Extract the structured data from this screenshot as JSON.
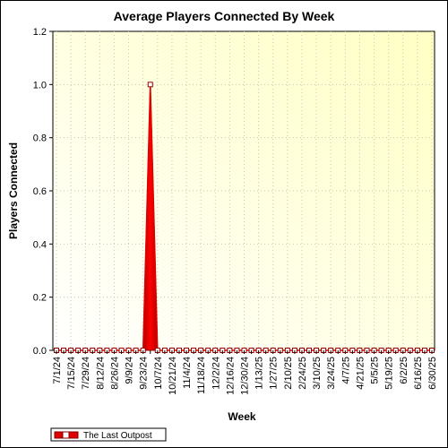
{
  "chart_data": {
    "type": "area",
    "title": "Average Players Connected By Week",
    "xlabel": "Week",
    "ylabel": "Players Connected",
    "ylim": [
      0,
      1.2
    ],
    "yticks": [
      "0.0",
      "0.2",
      "0.4",
      "0.6",
      "0.8",
      "1.0",
      "1.2"
    ],
    "x": [
      "7/1/24",
      "7/8/24",
      "7/15/24",
      "7/22/24",
      "7/29/24",
      "8/5/24",
      "8/12/24",
      "8/19/24",
      "8/26/24",
      "9/2/24",
      "9/9/24",
      "9/16/24",
      "9/23/24",
      "9/30/24",
      "10/7/24",
      "10/14/24",
      "10/21/24",
      "10/28/24",
      "11/4/24",
      "11/11/24",
      "11/18/24",
      "11/25/24",
      "12/2/24",
      "12/9/24",
      "12/16/24",
      "12/23/24",
      "12/30/24",
      "1/6/25",
      "1/13/25",
      "1/20/25",
      "1/27/25",
      "2/3/25",
      "2/10/25",
      "2/17/25",
      "2/24/25",
      "3/3/25",
      "3/10/25",
      "3/17/25",
      "3/24/25",
      "3/31/25",
      "4/7/25",
      "4/14/25",
      "4/21/25",
      "4/28/25",
      "5/5/25",
      "5/12/25",
      "5/19/25",
      "5/26/25",
      "6/2/25",
      "6/9/25",
      "6/16/25",
      "6/23/25",
      "6/30/25"
    ],
    "xtick_labels": [
      "7/1/24",
      "7/15/24",
      "7/29/24",
      "8/12/24",
      "8/26/24",
      "9/9/24",
      "9/23/24",
      "10/7/24",
      "10/21/24",
      "11/4/24",
      "11/18/24",
      "12/2/24",
      "12/16/24",
      "12/30/24",
      "1/13/25",
      "1/27/25",
      "2/10/25",
      "2/24/25",
      "3/10/25",
      "3/24/25",
      "4/7/25",
      "4/21/25",
      "5/5/25",
      "5/19/25",
      "6/2/25",
      "6/16/25",
      "6/30/25"
    ],
    "series": [
      {
        "name": "The Last Outpost",
        "color": "#e00000",
        "values": [
          0,
          0,
          0,
          0,
          0,
          0,
          0,
          0,
          0,
          0,
          0,
          0,
          0,
          1.0,
          0,
          0,
          0,
          0,
          0,
          0,
          0,
          0,
          0,
          0,
          0,
          0,
          0,
          0,
          0,
          0,
          0,
          0,
          0,
          0,
          0,
          0,
          0,
          0,
          0,
          0,
          0,
          0,
          0,
          0,
          0,
          0,
          0,
          0,
          0,
          0,
          0,
          0,
          0
        ]
      }
    ],
    "grid": true,
    "legend": "bottom-left",
    "background_colors": [
      "#ffffc8",
      "#ffffff"
    ]
  }
}
